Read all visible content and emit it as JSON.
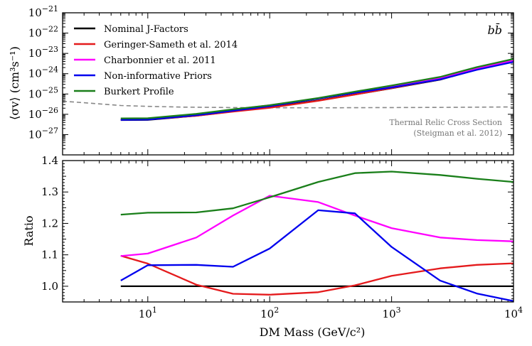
{
  "chart_data": [
    {
      "type": "line",
      "panel": "top",
      "xscale": "log",
      "yscale": "log",
      "xlim": [
        2,
        10000
      ],
      "ylim": [
        1e-28,
        1e-21
      ],
      "ylabel": "⟨σv⟩ (cm³s⁻¹)",
      "yticks": [
        1e-27,
        1e-26,
        1e-25,
        1e-24,
        1e-23,
        1e-22,
        1e-21
      ],
      "ytick_labels": [
        {
          "base": "10",
          "exp": "−27"
        },
        {
          "base": "10",
          "exp": "−26"
        },
        {
          "base": "10",
          "exp": "−25"
        },
        {
          "base": "10",
          "exp": "−24"
        },
        {
          "base": "10",
          "exp": "−23"
        },
        {
          "base": "10",
          "exp": "−22"
        },
        {
          "base": "10",
          "exp": "−21"
        }
      ],
      "channel_label": "bb̄",
      "legend_position": "top-left",
      "series": [
        {
          "name": "Nominal J-Factors",
          "color": "#000000",
          "x": [
            6,
            10,
            25,
            50,
            100,
            250,
            500,
            1000,
            2500,
            5000,
            10000
          ],
          "y": [
            5.2e-27,
            5.3e-27,
            8.5e-27,
            1.4e-26,
            2.2e-26,
            4.8e-26,
            9.5e-26,
            1.9e-25,
            5.1e-25,
            1.6e-24,
            4e-24
          ]
        },
        {
          "name": "Geringer-Sameth et al. 2014",
          "color": "#e41a1c",
          "x": [
            6,
            10,
            25,
            50,
            100,
            250,
            500,
            1000,
            2500,
            5000,
            10000
          ],
          "y": [
            5.4e-27,
            5.6e-27,
            8.4e-27,
            1.35e-26,
            2.1e-26,
            4.6e-26,
            9.4e-26,
            1.95e-25,
            5.3e-25,
            1.7e-24,
            4.2e-24
          ]
        },
        {
          "name": "Charbonnier et al. 2011",
          "color": "#ff00ff",
          "x": [
            6,
            10,
            25,
            50,
            100,
            250,
            500,
            1000,
            2500,
            5000,
            10000
          ],
          "y": [
            5.5e-27,
            5.8e-27,
            9.6e-27,
            1.7e-26,
            2.8e-26,
            6e-26,
            1.15e-25,
            2.25e-25,
            5.9e-25,
            1.8e-24,
            4.5e-24
          ]
        },
        {
          "name": "Non-informative Priors",
          "color": "#0000ee",
          "x": [
            6,
            10,
            25,
            50,
            100,
            250,
            500,
            1000,
            2500,
            5000,
            10000
          ],
          "y": [
            5.3e-27,
            5.5e-27,
            9e-27,
            1.5e-26,
            2.5e-26,
            5.9e-26,
            1.15e-25,
            2.1e-25,
            5.2e-25,
            1.55e-24,
            3.8e-24
          ]
        },
        {
          "name": "Burkert Profile",
          "color": "#1a7f1a",
          "x": [
            6,
            10,
            25,
            50,
            100,
            250,
            500,
            1000,
            2500,
            5000,
            10000
          ],
          "y": [
            6.3e-27,
            6.4e-27,
            1.05e-26,
            1.75e-26,
            2.8e-26,
            6.3e-26,
            1.3e-25,
            2.6e-25,
            6.9e-25,
            2.1e-24,
            5.3e-24
          ]
        }
      ],
      "reference_line": {
        "color": "#888888",
        "style": "dashed",
        "x": [
          2,
          3,
          6,
          10,
          20,
          50,
          100,
          300,
          1000,
          3000,
          10000
        ],
        "y": [
          4.4e-26,
          3.7e-26,
          2.7e-26,
          2.45e-26,
          2.25e-26,
          2.15e-26,
          2.1e-26,
          2.1e-26,
          2.15e-26,
          2.2e-26,
          2.3e-26
        ]
      },
      "annotation_lines": [
        "Thermal Relic Cross Section",
        "(Steigman et al. 2012)"
      ]
    },
    {
      "type": "line",
      "panel": "bottom",
      "xscale": "log",
      "xlim": [
        2,
        10000
      ],
      "ylim": [
        0.95,
        1.4
      ],
      "xlabel": "DM Mass (GeV/c²)",
      "ylabel": "Ratio",
      "yticks": [
        1.0,
        1.1,
        1.2,
        1.3,
        1.4
      ],
      "ytick_labels": [
        "1.0",
        "1.1",
        "1.2",
        "1.3",
        "1.4"
      ],
      "xticks": [
        10,
        100,
        1000,
        10000
      ],
      "xtick_labels": [
        {
          "base": "10",
          "exp": "1"
        },
        {
          "base": "10",
          "exp": "2"
        },
        {
          "base": "10",
          "exp": "3"
        },
        {
          "base": "10",
          "exp": "4"
        }
      ],
      "series": [
        {
          "name": "Nominal J-Factors",
          "color": "#000000",
          "x": [
            6,
            10000
          ],
          "y": [
            1.0,
            1.0
          ]
        },
        {
          "name": "Geringer-Sameth et al. 2014",
          "color": "#e41a1c",
          "x": [
            6,
            10,
            25,
            50,
            100,
            250,
            500,
            1000,
            2500,
            5000,
            10000
          ],
          "y": [
            1.097,
            1.072,
            1.005,
            0.976,
            0.973,
            0.981,
            1.003,
            1.033,
            1.057,
            1.068,
            1.073
          ]
        },
        {
          "name": "Charbonnier et al. 2011",
          "color": "#ff00ff",
          "x": [
            6,
            10,
            25,
            50,
            100,
            250,
            500,
            1000,
            2500,
            5000,
            10000
          ],
          "y": [
            1.096,
            1.104,
            1.155,
            1.225,
            1.288,
            1.268,
            1.225,
            1.185,
            1.155,
            1.147,
            1.143
          ]
        },
        {
          "name": "Non-informative Priors",
          "color": "#0000ee",
          "x": [
            6,
            10,
            25,
            50,
            100,
            250,
            500,
            1000,
            2500,
            5000,
            10000
          ],
          "y": [
            1.018,
            1.067,
            1.068,
            1.062,
            1.12,
            1.242,
            1.232,
            1.125,
            1.018,
            0.977,
            0.953
          ]
        },
        {
          "name": "Burkert Profile",
          "color": "#1a7f1a",
          "x": [
            6,
            10,
            25,
            50,
            100,
            250,
            500,
            1000,
            2500,
            5000,
            10000
          ],
          "y": [
            1.228,
            1.234,
            1.235,
            1.248,
            1.283,
            1.332,
            1.36,
            1.365,
            1.354,
            1.342,
            1.332
          ]
        }
      ]
    }
  ]
}
